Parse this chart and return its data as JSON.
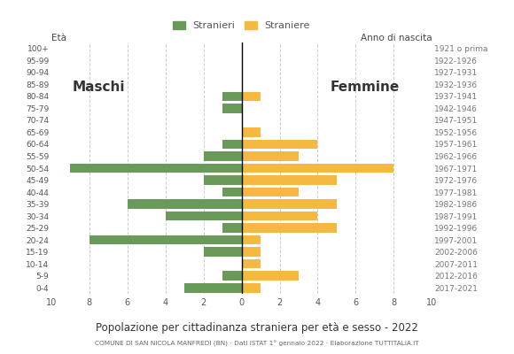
{
  "age_groups": [
    "0-4",
    "5-9",
    "10-14",
    "15-19",
    "20-24",
    "25-29",
    "30-34",
    "35-39",
    "40-44",
    "45-49",
    "50-54",
    "55-59",
    "60-64",
    "65-69",
    "70-74",
    "75-79",
    "80-84",
    "85-89",
    "90-94",
    "95-99",
    "100+"
  ],
  "birth_years": [
    "2017-2021",
    "2012-2016",
    "2007-2011",
    "2002-2006",
    "1997-2001",
    "1992-1996",
    "1987-1991",
    "1982-1986",
    "1977-1981",
    "1972-1976",
    "1967-1971",
    "1962-1966",
    "1957-1961",
    "1952-1956",
    "1947-1951",
    "1942-1946",
    "1937-1941",
    "1932-1936",
    "1927-1931",
    "1922-1926",
    "1921 o prima"
  ],
  "males": [
    3,
    1,
    0,
    2,
    8,
    1,
    4,
    6,
    1,
    2,
    9,
    2,
    1,
    0,
    0,
    1,
    1,
    0,
    0,
    0,
    0
  ],
  "females": [
    1,
    3,
    1,
    1,
    1,
    5,
    4,
    5,
    3,
    5,
    8,
    3,
    4,
    1,
    0,
    0,
    1,
    0,
    0,
    0,
    0
  ],
  "male_color": "#6a9a5a",
  "female_color": "#f5b942",
  "title": "Popolazione per cittadinanza straniera per età e sesso - 2022",
  "subtitle": "COMUNE DI SAN NICOLA MANFREDI (BN) · Dati ISTAT 1° gennaio 2022 · Elaborazione TUTTITALIA.IT",
  "legend_male": "Stranieri",
  "legend_female": "Straniere",
  "xlabel_left": "Età",
  "label_males": "Maschi",
  "label_females": "Femmine",
  "axis_label_right": "Anno di nascita",
  "xlim": 10,
  "background_color": "#ffffff"
}
